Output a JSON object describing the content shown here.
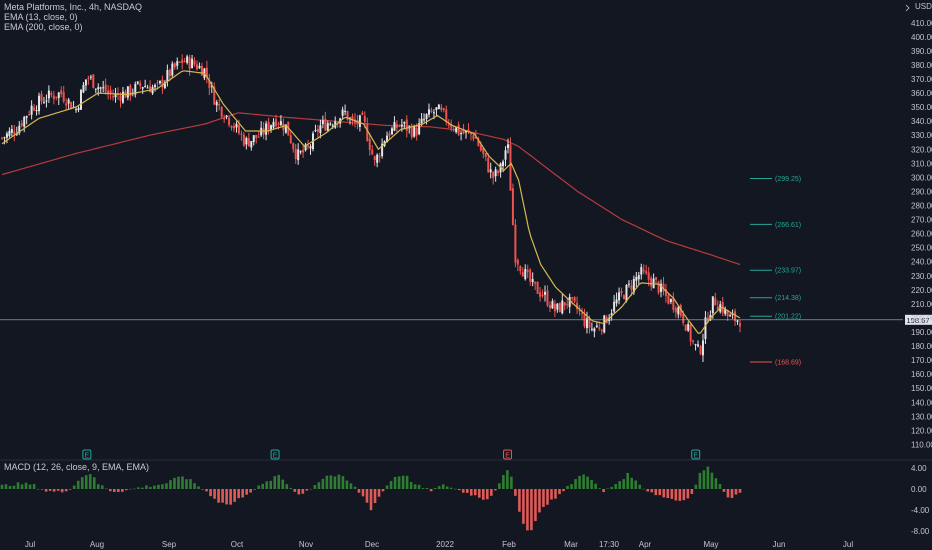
{
  "header": {
    "symbol_line": "Meta Platforms, Inc., 4h, NASDAQ",
    "ema13_line": "EMA (13, close, 0)",
    "ema200_line": "EMA (200, close, 0)",
    "currency": "USD"
  },
  "macd": {
    "label": "MACD (12, 26, close, 9, EMA, EMA)"
  },
  "colors": {
    "bg": "#131722",
    "up": "#26a69a",
    "down": "#ef5350",
    "ema13": "#d6b94e",
    "ema200": "#b83a3d",
    "grid": "#1e222d",
    "text": "#c2c5cc"
  },
  "chart_data": [
    {
      "type": "candlestick",
      "title": "Meta Platforms, Inc., 4h, NASDAQ",
      "ylabel": "USD",
      "ylim": [
        110,
        420
      ],
      "y_ticks": [
        "410.00",
        "400.00",
        "390.00",
        "380.00",
        "370.00",
        "360.00",
        "350.00",
        "340.00",
        "330.00",
        "320.00",
        "310.00",
        "300.00",
        "290.00",
        "280.00",
        "270.00",
        "260.00",
        "250.00",
        "240.00",
        "230.00",
        "220.00",
        "210.00",
        "200.00",
        "190.00",
        "180.00",
        "170.00",
        "160.00",
        "150.00",
        "140.00",
        "130.00",
        "120.00",
        "110.00"
      ],
      "x_ticks": [
        "Jul",
        "Aug",
        "Sep",
        "Oct",
        "Nov",
        "Dec",
        "2022",
        "Feb",
        "Mar",
        "17:30",
        "Apr",
        "May",
        "Jun",
        "Jul"
      ],
      "price_path": [
        [
          0,
          328
        ],
        [
          0.02,
          335
        ],
        [
          0.04,
          350
        ],
        [
          0.06,
          357
        ],
        [
          0.08,
          360
        ],
        [
          0.1,
          348
        ],
        [
          0.115,
          372
        ],
        [
          0.13,
          365
        ],
        [
          0.15,
          358
        ],
        [
          0.17,
          360
        ],
        [
          0.19,
          366
        ],
        [
          0.21,
          363
        ],
        [
          0.23,
          376
        ],
        [
          0.245,
          383
        ],
        [
          0.26,
          381
        ],
        [
          0.275,
          376
        ],
        [
          0.29,
          353
        ],
        [
          0.31,
          340
        ],
        [
          0.33,
          325
        ],
        [
          0.35,
          330
        ],
        [
          0.37,
          342
        ],
        [
          0.385,
          336
        ],
        [
          0.4,
          315
        ],
        [
          0.415,
          320
        ],
        [
          0.43,
          336
        ],
        [
          0.45,
          341
        ],
        [
          0.465,
          346
        ],
        [
          0.475,
          338
        ],
        [
          0.49,
          340
        ],
        [
          0.505,
          310
        ],
        [
          0.52,
          330
        ],
        [
          0.54,
          338
        ],
        [
          0.56,
          332
        ],
        [
          0.575,
          343
        ],
        [
          0.59,
          348
        ],
        [
          0.605,
          340
        ],
        [
          0.62,
          332
        ],
        [
          0.64,
          330
        ],
        [
          0.655,
          312
        ],
        [
          0.665,
          300
        ],
        [
          0.675,
          305
        ],
        [
          0.685,
          325
        ],
        [
          0.695,
          245
        ],
        [
          0.71,
          230
        ],
        [
          0.72,
          222
        ],
        [
          0.735,
          216
        ],
        [
          0.75,
          205
        ],
        [
          0.765,
          212
        ],
        [
          0.78,
          206
        ],
        [
          0.79,
          197
        ],
        [
          0.8,
          192
        ],
        [
          0.815,
          196
        ],
        [
          0.83,
          210
        ],
        [
          0.85,
          222
        ],
        [
          0.865,
          232
        ],
        [
          0.875,
          228
        ],
        [
          0.885,
          225
        ],
        [
          0.895,
          218
        ],
        [
          0.905,
          212
        ],
        [
          0.915,
          208
        ],
        [
          0.925,
          198
        ],
        [
          0.935,
          183
        ],
        [
          0.945,
          175
        ],
        [
          0.955,
          200
        ],
        [
          0.965,
          213
        ],
        [
          0.975,
          208
        ],
        [
          0.985,
          200
        ],
        [
          1,
          198.67
        ]
      ],
      "ema13_path": [
        [
          0,
          324
        ],
        [
          0.05,
          342
        ],
        [
          0.1,
          350
        ],
        [
          0.13,
          360
        ],
        [
          0.17,
          359
        ],
        [
          0.21,
          363
        ],
        [
          0.245,
          376
        ],
        [
          0.275,
          374
        ],
        [
          0.3,
          352
        ],
        [
          0.33,
          333
        ],
        [
          0.36,
          333
        ],
        [
          0.385,
          337
        ],
        [
          0.41,
          322
        ],
        [
          0.44,
          332
        ],
        [
          0.465,
          343
        ],
        [
          0.49,
          338
        ],
        [
          0.51,
          320
        ],
        [
          0.54,
          334
        ],
        [
          0.57,
          338
        ],
        [
          0.59,
          344
        ],
        [
          0.61,
          337
        ],
        [
          0.64,
          331
        ],
        [
          0.66,
          315
        ],
        [
          0.68,
          305
        ],
        [
          0.69,
          310
        ],
        [
          0.7,
          298
        ],
        [
          0.715,
          260
        ],
        [
          0.73,
          238
        ],
        [
          0.75,
          222
        ],
        [
          0.77,
          212
        ],
        [
          0.8,
          198
        ],
        [
          0.815,
          196
        ],
        [
          0.84,
          208
        ],
        [
          0.865,
          225
        ],
        [
          0.89,
          224
        ],
        [
          0.91,
          214
        ],
        [
          0.925,
          202
        ],
        [
          0.945,
          188
        ],
        [
          0.96,
          200
        ],
        [
          0.975,
          208
        ],
        [
          0.99,
          203
        ],
        [
          1,
          200
        ]
      ],
      "ema200_path": [
        [
          0,
          302
        ],
        [
          0.1,
          317
        ],
        [
          0.2,
          330
        ],
        [
          0.275,
          338
        ],
        [
          0.32,
          346
        ],
        [
          0.38,
          343
        ],
        [
          0.45,
          340
        ],
        [
          0.52,
          337
        ],
        [
          0.58,
          336
        ],
        [
          0.63,
          333
        ],
        [
          0.68,
          327
        ],
        [
          0.7,
          322
        ],
        [
          0.73,
          310
        ],
        [
          0.78,
          290
        ],
        [
          0.84,
          270
        ],
        [
          0.9,
          255
        ],
        [
          0.96,
          245
        ],
        [
          1,
          238
        ]
      ],
      "last_price": "198.67",
      "fib_levels": [
        {
          "label": "(299.25)",
          "value": 299.25,
          "color": "#26a69a"
        },
        {
          "label": "(266.61)",
          "value": 266.61,
          "color": "#26a69a"
        },
        {
          "label": "(233.97)",
          "value": 233.97,
          "color": "#26a69a"
        },
        {
          "label": "(214.38)",
          "value": 214.38,
          "color": "#26a69a"
        },
        {
          "label": "(201.22)",
          "value": 201.22,
          "color": "#26a69a"
        },
        {
          "label": "(168.69)",
          "value": 168.69,
          "color": "#ef5350"
        }
      ],
      "event_markers": [
        {
          "label": "E",
          "x": 0.115,
          "color": "#26a69a"
        },
        {
          "label": "E",
          "x": 0.37,
          "color": "#26a69a"
        },
        {
          "label": "E",
          "x": 0.685,
          "color": "#ef5350"
        },
        {
          "label": "E",
          "x": 0.94,
          "color": "#26a69a"
        }
      ]
    },
    {
      "type": "bar",
      "title": "MACD (12, 26, close, 9, EMA, EMA)",
      "ylim": [
        -10,
        6
      ],
      "y_ticks": [
        "4.00",
        "0.00",
        "-4.00",
        "-8.00"
      ],
      "hist_path": [
        [
          0,
          0.6
        ],
        [
          0.02,
          1.0
        ],
        [
          0.04,
          0.9
        ],
        [
          0.06,
          -0.4
        ],
        [
          0.08,
          -0.6
        ],
        [
          0.095,
          0.3
        ],
        [
          0.11,
          2.6
        ],
        [
          0.12,
          3.0
        ],
        [
          0.13,
          1.0
        ],
        [
          0.15,
          -0.5
        ],
        [
          0.17,
          -0.2
        ],
        [
          0.19,
          0.4
        ],
        [
          0.22,
          1.0
        ],
        [
          0.245,
          2.5
        ],
        [
          0.26,
          1.2
        ],
        [
          0.28,
          -0.8
        ],
        [
          0.295,
          -2.6
        ],
        [
          0.31,
          -3.0
        ],
        [
          0.33,
          -1.0
        ],
        [
          0.35,
          0.6
        ],
        [
          0.375,
          2.6
        ],
        [
          0.39,
          0.4
        ],
        [
          0.405,
          -1.2
        ],
        [
          0.42,
          0.4
        ],
        [
          0.44,
          2.6
        ],
        [
          0.46,
          2.4
        ],
        [
          0.475,
          0.8
        ],
        [
          0.49,
          -1.6
        ],
        [
          0.5,
          -3.8
        ],
        [
          0.515,
          -0.6
        ],
        [
          0.53,
          2.2
        ],
        [
          0.545,
          2.8
        ],
        [
          0.56,
          0.8
        ],
        [
          0.58,
          -0.3
        ],
        [
          0.6,
          0.8
        ],
        [
          0.62,
          -0.3
        ],
        [
          0.64,
          -1.2
        ],
        [
          0.655,
          -2.0
        ],
        [
          0.665,
          -1.0
        ],
        [
          0.675,
          1.6
        ],
        [
          0.685,
          3.5
        ],
        [
          0.69,
          2.2
        ],
        [
          0.695,
          -1.0
        ],
        [
          0.705,
          -6.0
        ],
        [
          0.715,
          -8.8
        ],
        [
          0.725,
          -5.0
        ],
        [
          0.74,
          -2.6
        ],
        [
          0.76,
          -0.6
        ],
        [
          0.775,
          1.6
        ],
        [
          0.79,
          3.2
        ],
        [
          0.8,
          1.4
        ],
        [
          0.815,
          -0.6
        ],
        [
          0.83,
          0.8
        ],
        [
          0.85,
          3.0
        ],
        [
          0.86,
          1.2
        ],
        [
          0.875,
          -0.3
        ],
        [
          0.89,
          -1.2
        ],
        [
          0.905,
          -1.8
        ],
        [
          0.92,
          -2.3
        ],
        [
          0.935,
          -1.0
        ],
        [
          0.945,
          2.8
        ],
        [
          0.955,
          4.2
        ],
        [
          0.965,
          3.0
        ],
        [
          0.975,
          0.2
        ],
        [
          0.985,
          -1.6
        ],
        [
          1,
          -1.0
        ]
      ]
    }
  ]
}
